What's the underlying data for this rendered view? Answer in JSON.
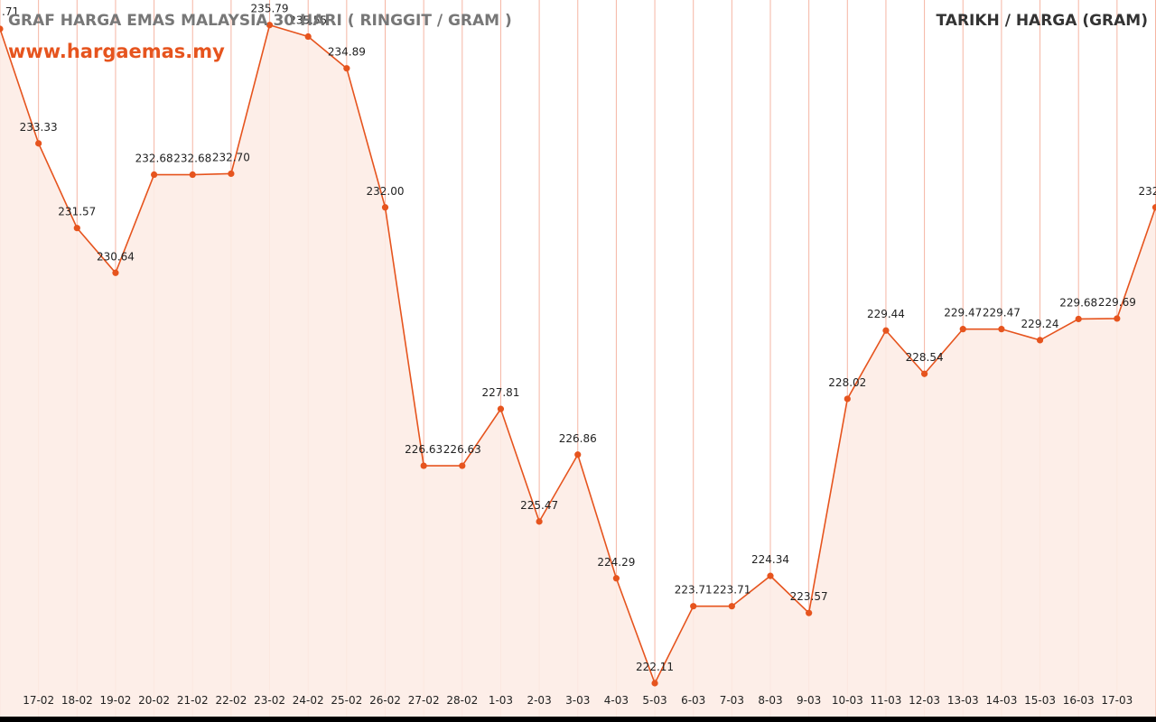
{
  "chart_data": {
    "type": "area",
    "title": "GRAF HARGA EMAS MALAYSIA 30 HARI ( RINGGIT / GRAM )",
    "subtitle": "www.hargaemas.my",
    "legend": "TARIKH / HARGA (GRAM)",
    "xlabel": "",
    "ylabel": "",
    "ylim": [
      221.5,
      236.7
    ],
    "grid": true,
    "line_color": "#e6541e",
    "fill_color": "#fdece5",
    "grid_color": "#f5b5a3",
    "points": [
      {
        "x": "",
        "value": 235.71,
        "label": ".71"
      },
      {
        "x": "17-02",
        "value": 233.33,
        "label": "233.33"
      },
      {
        "x": "18-02",
        "value": 231.57,
        "label": "231.57"
      },
      {
        "x": "19-02",
        "value": 230.64,
        "label": "230.64"
      },
      {
        "x": "20-02",
        "value": 232.68,
        "label": "232.68"
      },
      {
        "x": "21-02",
        "value": 232.68,
        "label": "232.68"
      },
      {
        "x": "22-02",
        "value": 232.7,
        "label": "232.70"
      },
      {
        "x": "23-02",
        "value": 235.79,
        "label": "235.79"
      },
      {
        "x": "24-02",
        "value": 235.55,
        "label": "235.55"
      },
      {
        "x": "25-02",
        "value": 234.89,
        "label": "234.89"
      },
      {
        "x": "26-02",
        "value": 232.0,
        "label": "232.00"
      },
      {
        "x": "27-02",
        "value": 226.63,
        "label": "226.63"
      },
      {
        "x": "28-02",
        "value": 226.63,
        "label": "226.63"
      },
      {
        "x": "1-03",
        "value": 227.81,
        "label": "227.81"
      },
      {
        "x": "2-03",
        "value": 225.47,
        "label": "225.47"
      },
      {
        "x": "3-03",
        "value": 226.86,
        "label": "226.86"
      },
      {
        "x": "4-03",
        "value": 224.29,
        "label": "224.29"
      },
      {
        "x": "5-03",
        "value": 222.11,
        "label": "222.11"
      },
      {
        "x": "6-03",
        "value": 223.71,
        "label": "223.71"
      },
      {
        "x": "7-03",
        "value": 223.71,
        "label": "223.71"
      },
      {
        "x": "8-03",
        "value": 224.34,
        "label": "224.34"
      },
      {
        "x": "9-03",
        "value": 223.57,
        "label": "223.57"
      },
      {
        "x": "10-03",
        "value": 228.02,
        "label": "228.02"
      },
      {
        "x": "11-03",
        "value": 229.44,
        "label": "229.44"
      },
      {
        "x": "12-03",
        "value": 228.54,
        "label": "228.54"
      },
      {
        "x": "13-03",
        "value": 229.47,
        "label": "229.47"
      },
      {
        "x": "14-03",
        "value": 229.47,
        "label": "229.47"
      },
      {
        "x": "15-03",
        "value": 229.24,
        "label": "229.24"
      },
      {
        "x": "16-03",
        "value": 229.68,
        "label": "229.68"
      },
      {
        "x": "17-03",
        "value": 229.69,
        "label": "229.69"
      },
      {
        "x": "",
        "value": 232.0,
        "label": "232"
      }
    ]
  }
}
